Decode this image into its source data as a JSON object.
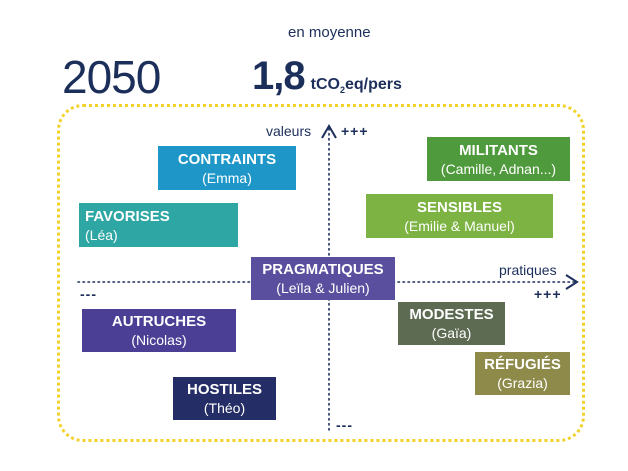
{
  "header": {
    "year": "2050",
    "average_label": "en moyenne",
    "value": "1,8",
    "unit_prefix": "tCO",
    "unit_sub": "2",
    "unit_suffix": "eq/pers"
  },
  "axes": {
    "vertical_label": "valeurs",
    "vertical_plus": "+++",
    "vertical_minus": "---",
    "horizontal_label": "pratiques",
    "horizontal_plus": "+++",
    "horizontal_minus": "---"
  },
  "profiles": [
    {
      "name": "CONTRAINTS",
      "people": "(Emma)",
      "color": "#1e96c8"
    },
    {
      "name": "FAVORISES",
      "people": "(Léa)",
      "color": "#2ea6a4"
    },
    {
      "name": "MILITANTS",
      "people": "(Camille, Adnan...)",
      "color": "#4f9a3c"
    },
    {
      "name": "SENSIBLES",
      "people": "(Emilie & Manuel)",
      "color": "#7cb342"
    },
    {
      "name": "PRAGMATIQUES",
      "people": "(Leïla & Julien)",
      "color": "#5a4f9e"
    },
    {
      "name": "AUTRUCHES",
      "people": "(Nicolas)",
      "color": "#4a3f95"
    },
    {
      "name": "MODESTES",
      "people": "(Gaïa)",
      "color": "#5d6b52"
    },
    {
      "name": "RÉFUGIÉS",
      "people": "(Grazia)",
      "color": "#8e8a4a"
    },
    {
      "name": "HOSTILES",
      "people": "(Théo)",
      "color": "#252d66"
    }
  ]
}
